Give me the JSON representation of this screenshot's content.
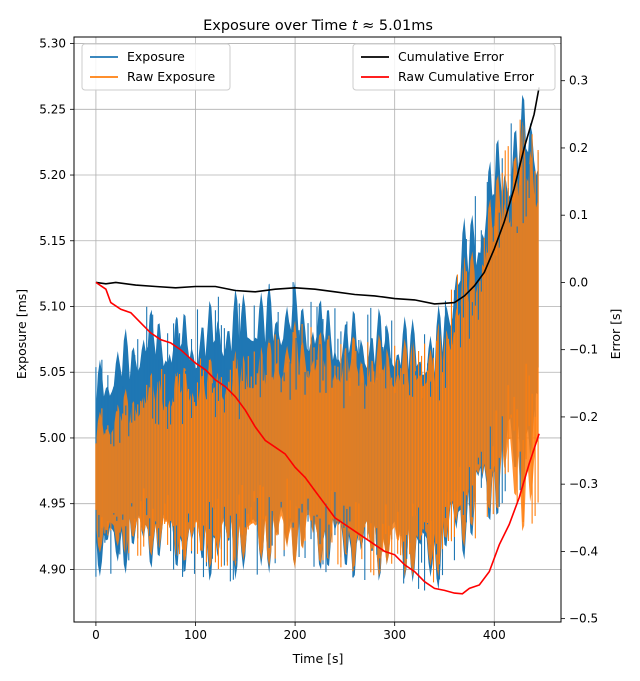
{
  "chart_data": {
    "type": "line",
    "title": "Exposure over Time t ≈ 5.01ms",
    "title_parts": {
      "prefix": "Exposure over Time ",
      "italic": "t",
      "suffix": " ≈ 5.01ms"
    },
    "xlabel": "Time [s]",
    "ylabel_left": "Exposure [ms]",
    "ylabel_right": "Error [s]",
    "xlim": [
      -22,
      467
    ],
    "ylim_left": [
      4.86,
      5.305
    ],
    "ylim_right": [
      -0.505,
      0.365
    ],
    "x_ticks": [
      0,
      100,
      200,
      300,
      400
    ],
    "y_ticks_left": [
      4.9,
      4.95,
      5.0,
      5.05,
      5.1,
      5.15,
      5.2,
      5.25,
      5.3
    ],
    "y_ticks_right": [
      -0.5,
      -0.4,
      -0.3,
      -0.2,
      -0.1,
      0.0,
      0.1,
      0.2,
      0.3
    ],
    "grid": true,
    "legend_left": {
      "placement": "top-left",
      "entries": [
        "Exposure",
        "Raw Exposure"
      ]
    },
    "legend_right": {
      "placement": "top-right",
      "entries": [
        "Cumulative Error",
        "Raw Cumulative Error"
      ]
    },
    "colors": {
      "exposure": "#1f77b4",
      "raw_exposure": "#ff7f0e",
      "cumulative_error": "#000000",
      "raw_cumulative_error": "#ff0000"
    },
    "series_left": [
      {
        "name": "Exposure",
        "axis": "left",
        "envelope": {
          "x": [
            0,
            50,
            100,
            150,
            200,
            250,
            300,
            340,
            360,
            380,
            400,
            420,
            440,
            445
          ],
          "upper": [
            5.06,
            5.1,
            5.1,
            5.12,
            5.12,
            5.1,
            5.1,
            5.09,
            5.15,
            5.19,
            5.23,
            5.26,
            5.27,
            5.26
          ],
          "lower": [
            4.89,
            4.9,
            4.89,
            4.89,
            4.9,
            4.89,
            4.89,
            4.88,
            4.9,
            4.91,
            4.93,
            4.95,
            4.96,
            4.98
          ]
        }
      },
      {
        "name": "Raw Exposure",
        "axis": "left",
        "envelope": {
          "x": [
            0,
            50,
            100,
            150,
            200,
            250,
            300,
            340,
            360,
            380,
            400,
            420,
            440,
            445
          ],
          "upper": [
            5.02,
            5.05,
            5.06,
            5.07,
            5.09,
            5.08,
            5.08,
            5.08,
            5.12,
            5.16,
            5.2,
            5.24,
            5.25,
            5.24
          ],
          "lower": [
            4.91,
            4.91,
            4.9,
            4.9,
            4.9,
            4.9,
            4.89,
            4.89,
            4.91,
            4.92,
            4.94,
            4.93,
            4.92,
            4.94
          ]
        }
      }
    ],
    "series_right": [
      {
        "name": "Cumulative Error",
        "axis": "right",
        "x": [
          0,
          10,
          20,
          40,
          60,
          80,
          100,
          120,
          140,
          150,
          160,
          180,
          200,
          220,
          240,
          260,
          280,
          300,
          320,
          340,
          350,
          360,
          370,
          380,
          390,
          400,
          410,
          420,
          430,
          440,
          445
        ],
        "y": [
          0.0,
          -0.002,
          0.0,
          -0.004,
          -0.006,
          -0.008,
          -0.006,
          -0.006,
          -0.012,
          -0.013,
          -0.014,
          -0.01,
          -0.008,
          -0.01,
          -0.014,
          -0.018,
          -0.02,
          -0.024,
          -0.026,
          -0.032,
          -0.031,
          -0.03,
          -0.02,
          -0.005,
          0.015,
          0.05,
          0.09,
          0.14,
          0.2,
          0.25,
          0.29
        ]
      },
      {
        "name": "Raw Cumulative Error",
        "axis": "right",
        "x": [
          0,
          5,
          10,
          15,
          25,
          35,
          45,
          55,
          65,
          75,
          85,
          100,
          110,
          120,
          130,
          140,
          150,
          160,
          170,
          180,
          190,
          200,
          210,
          220,
          230,
          240,
          250,
          260,
          270,
          280,
          290,
          300,
          310,
          320,
          330,
          340,
          350,
          360,
          368,
          375,
          385,
          395,
          405,
          415,
          425,
          435,
          445
        ],
        "y": [
          0.0,
          -0.005,
          -0.01,
          -0.03,
          -0.04,
          -0.045,
          -0.06,
          -0.075,
          -0.085,
          -0.09,
          -0.1,
          -0.12,
          -0.13,
          -0.145,
          -0.155,
          -0.17,
          -0.19,
          -0.215,
          -0.235,
          -0.245,
          -0.255,
          -0.275,
          -0.29,
          -0.31,
          -0.33,
          -0.35,
          -0.36,
          -0.37,
          -0.38,
          -0.39,
          -0.4,
          -0.405,
          -0.42,
          -0.43,
          -0.445,
          -0.455,
          -0.458,
          -0.462,
          -0.463,
          -0.455,
          -0.45,
          -0.43,
          -0.39,
          -0.36,
          -0.32,
          -0.27,
          -0.225
        ]
      }
    ]
  }
}
